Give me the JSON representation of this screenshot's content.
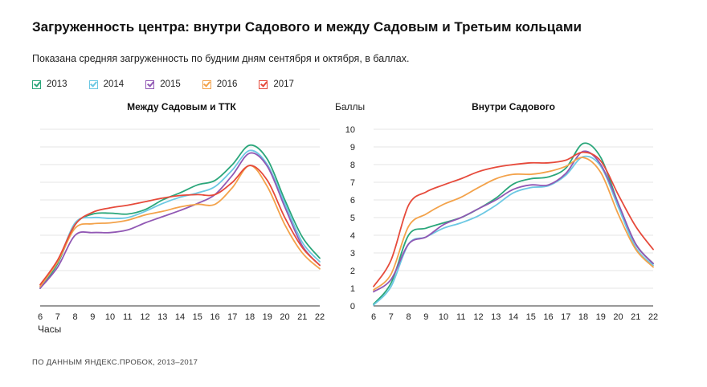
{
  "title": "Загруженность центра: внутри Садового и между Садовым и Третьим кольцами",
  "subtitle": "Показана средняя загруженность по будним дням сентября и октября, в баллах.",
  "source": "ПО ДАННЫМ ЯНДЕКС.ПРОБОК, 2013–2017",
  "legend": [
    {
      "label": "2013",
      "color": "#2aa67a"
    },
    {
      "label": "2014",
      "color": "#6cc8e3"
    },
    {
      "label": "2015",
      "color": "#9158b4"
    },
    {
      "label": "2016",
      "color": "#f3a24a"
    },
    {
      "label": "2017",
      "color": "#e64a3b"
    }
  ],
  "chart_data": [
    {
      "type": "line",
      "title": "Между Садовым и ТТК",
      "xlabel": "Часы",
      "ylabel": "",
      "x": [
        6,
        7,
        8,
        9,
        10,
        11,
        12,
        13,
        14,
        15,
        16,
        17,
        18,
        19,
        20,
        21,
        22
      ],
      "ylim": [
        0,
        10
      ],
      "grid": true,
      "series": [
        {
          "name": "2013",
          "color": "#2aa67a",
          "values": [
            1.0,
            2.4,
            4.6,
            5.2,
            5.25,
            5.2,
            5.45,
            6.0,
            6.4,
            6.85,
            7.1,
            8.0,
            9.1,
            8.3,
            6.0,
            3.9,
            2.7
          ]
        },
        {
          "name": "2014",
          "color": "#6cc8e3",
          "values": [
            1.1,
            2.5,
            4.7,
            5.0,
            4.95,
            5.0,
            5.35,
            5.8,
            6.15,
            6.4,
            6.75,
            7.7,
            8.8,
            8.0,
            5.8,
            3.6,
            2.5
          ]
        },
        {
          "name": "2015",
          "color": "#9158b4",
          "values": [
            1.0,
            2.2,
            4.0,
            4.15,
            4.15,
            4.3,
            4.7,
            5.05,
            5.4,
            5.8,
            6.3,
            7.4,
            8.65,
            7.9,
            5.6,
            3.4,
            2.3
          ]
        },
        {
          "name": "2016",
          "color": "#f3a24a",
          "values": [
            1.1,
            2.5,
            4.4,
            4.65,
            4.7,
            4.85,
            5.15,
            5.35,
            5.6,
            5.75,
            5.75,
            6.7,
            7.95,
            6.75,
            4.6,
            3.0,
            2.1
          ]
        },
        {
          "name": "2017",
          "color": "#e64a3b",
          "values": [
            1.2,
            2.6,
            4.6,
            5.3,
            5.55,
            5.7,
            5.9,
            6.1,
            6.25,
            6.3,
            6.3,
            7.0,
            7.95,
            7.1,
            5.0,
            3.3,
            2.3
          ]
        }
      ]
    },
    {
      "type": "line",
      "title": "Внутри Садового",
      "xlabel": "",
      "ylabel": "Баллы",
      "x": [
        6,
        7,
        8,
        9,
        10,
        11,
        12,
        13,
        14,
        15,
        16,
        17,
        18,
        19,
        20,
        21,
        22
      ],
      "ylim": [
        0,
        10
      ],
      "yticks": [
        0,
        1,
        2,
        3,
        4,
        5,
        6,
        7,
        8,
        9,
        10
      ],
      "grid": true,
      "series": [
        {
          "name": "2013",
          "color": "#2aa67a",
          "values": [
            0.1,
            1.3,
            4.0,
            4.4,
            4.7,
            5.0,
            5.5,
            6.1,
            6.9,
            7.2,
            7.3,
            7.8,
            9.2,
            8.4,
            5.8,
            3.5,
            2.4
          ]
        },
        {
          "name": "2014",
          "color": "#6cc8e3",
          "values": [
            0.05,
            1.1,
            3.5,
            3.9,
            4.4,
            4.7,
            5.1,
            5.7,
            6.4,
            6.7,
            6.8,
            7.4,
            8.45,
            7.9,
            5.6,
            3.3,
            2.3
          ]
        },
        {
          "name": "2015",
          "color": "#9158b4",
          "values": [
            0.8,
            1.5,
            3.5,
            3.9,
            4.6,
            5.0,
            5.5,
            6.0,
            6.6,
            6.85,
            6.85,
            7.5,
            8.75,
            8.0,
            5.8,
            3.5,
            2.4
          ]
        },
        {
          "name": "2016",
          "color": "#f3a24a",
          "values": [
            0.9,
            1.8,
            4.5,
            5.2,
            5.75,
            6.15,
            6.7,
            7.2,
            7.45,
            7.45,
            7.6,
            7.9,
            8.4,
            7.55,
            5.2,
            3.2,
            2.2
          ]
        },
        {
          "name": "2017",
          "color": "#e64a3b",
          "values": [
            1.1,
            2.6,
            5.7,
            6.45,
            6.85,
            7.2,
            7.6,
            7.85,
            8.0,
            8.1,
            8.1,
            8.25,
            8.7,
            8.2,
            6.3,
            4.5,
            3.2
          ]
        }
      ]
    }
  ]
}
